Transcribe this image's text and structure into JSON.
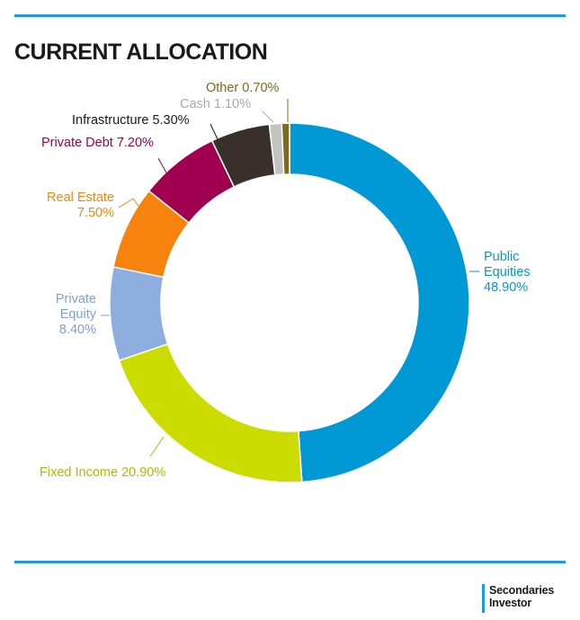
{
  "title": "CURRENT ALLOCATION",
  "brand": {
    "line1": "Secondaries",
    "line2": "Investor"
  },
  "colors": {
    "rule": "#1f9ad6"
  },
  "chart_data": {
    "type": "pie",
    "variant": "donut",
    "title": "CURRENT ALLOCATION",
    "unit": "%",
    "slices": [
      {
        "label": "Public Equities",
        "value": 48.9,
        "display": "48.90%",
        "color": "#0099d6",
        "label_color": "#0099d6"
      },
      {
        "label": "Fixed Income",
        "value": 20.9,
        "display": "20.90%",
        "color": "#cddc00",
        "label_color": "#b1b800"
      },
      {
        "label": "Private Equity",
        "value": 8.4,
        "display": "8.40%",
        "color": "#8eaee0",
        "label_color": "#7f9fd5"
      },
      {
        "label": "Real Estate",
        "value": 7.5,
        "display": "7.50%",
        "color": "#f7830f",
        "label_color": "#f7830f"
      },
      {
        "label": "Private Debt",
        "value": 7.2,
        "display": "7.20%",
        "color": "#a0004f",
        "label_color": "#a0004f"
      },
      {
        "label": "Infrastructure",
        "value": 5.3,
        "display": "5.30%",
        "color": "#3a302b",
        "label_color": "#1a1a1a"
      },
      {
        "label": "Cash",
        "value": 1.1,
        "display": "1.10%",
        "color": "#c3c3c3",
        "label_color": "#aaaaaa"
      },
      {
        "label": "Other",
        "value": 0.7,
        "display": "0.70%",
        "color": "#7b6b1e",
        "label_color": "#7b6b1e"
      }
    ],
    "legend": "none",
    "start": "top",
    "direction": "clockwise"
  }
}
